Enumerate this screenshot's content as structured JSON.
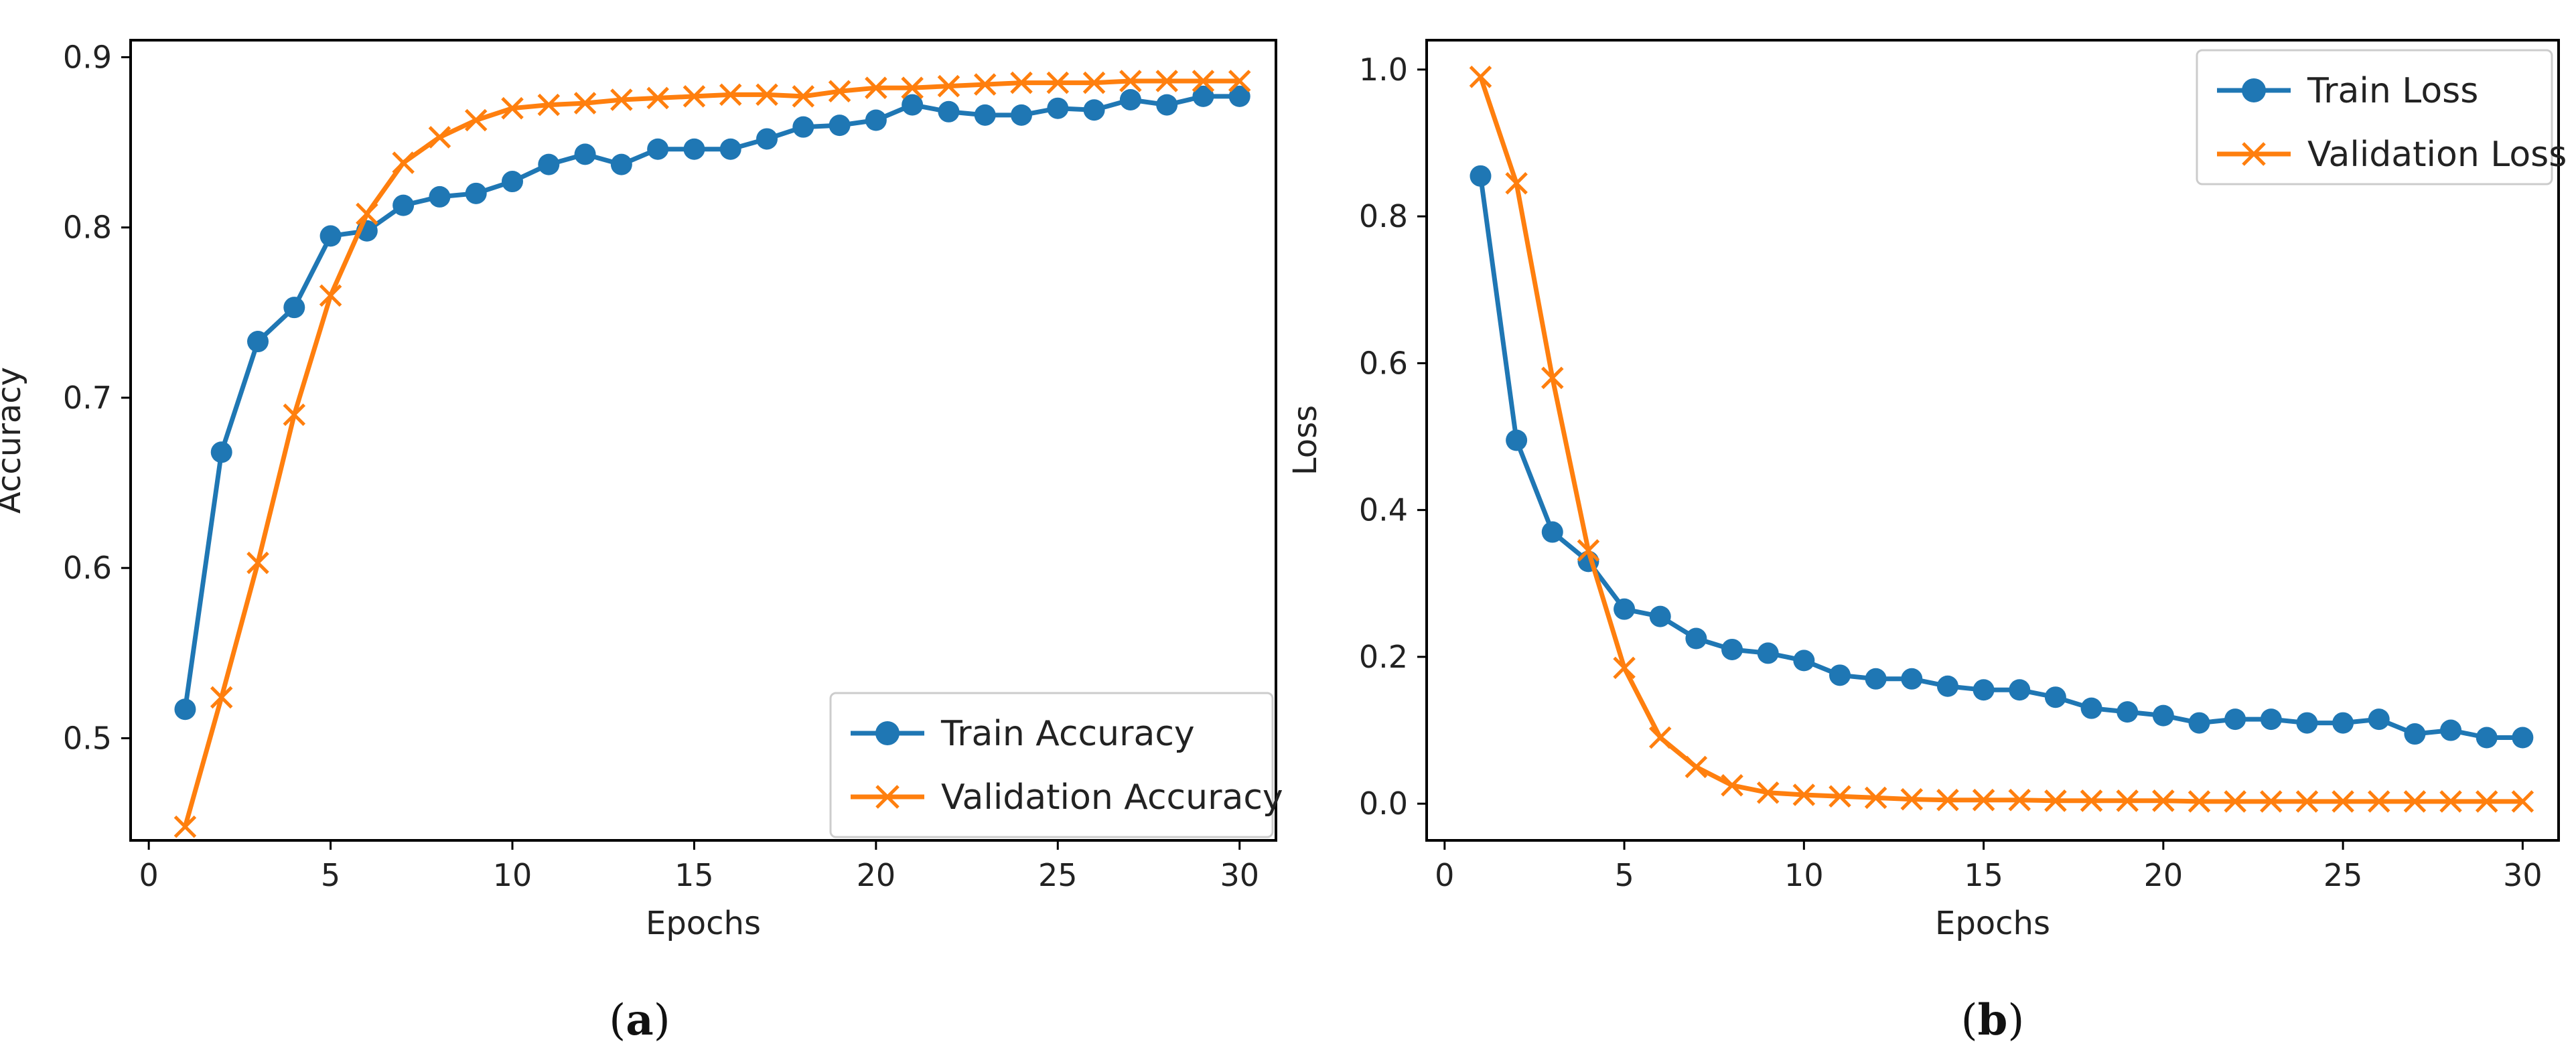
{
  "chart_data": [
    {
      "id": "a",
      "type": "line",
      "caption_open": "(",
      "caption_letter": "a",
      "caption_close": ")",
      "title": "",
      "xlabel": "Epochs",
      "ylabel": "Accuracy",
      "xlim": [
        -0.5,
        31
      ],
      "ylim": [
        0.44,
        0.91
      ],
      "xticks": [
        0,
        5,
        10,
        15,
        20,
        25,
        30
      ],
      "yticks": [
        0.5,
        0.6,
        0.7,
        0.8,
        0.9
      ],
      "ytick_labels": [
        "0.5",
        "0.6",
        "0.7",
        "0.8",
        "0.9"
      ],
      "legend_position": "lower-right",
      "x": [
        1,
        2,
        3,
        4,
        5,
        6,
        7,
        8,
        9,
        10,
        11,
        12,
        13,
        14,
        15,
        16,
        17,
        18,
        19,
        20,
        21,
        22,
        23,
        24,
        25,
        26,
        27,
        28,
        29,
        30
      ],
      "series": [
        {
          "name": "Train Accuracy",
          "color": "#1f77b4",
          "marker": "circle",
          "values": [
            0.517,
            0.668,
            0.733,
            0.753,
            0.795,
            0.798,
            0.813,
            0.818,
            0.82,
            0.827,
            0.837,
            0.843,
            0.837,
            0.846,
            0.846,
            0.846,
            0.852,
            0.859,
            0.86,
            0.863,
            0.872,
            0.868,
            0.866,
            0.866,
            0.87,
            0.869,
            0.875,
            0.872,
            0.877,
            0.877
          ]
        },
        {
          "name": "Validation Accuracy",
          "color": "#ff7f0e",
          "marker": "x",
          "values": [
            0.448,
            0.524,
            0.603,
            0.69,
            0.76,
            0.808,
            0.838,
            0.853,
            0.863,
            0.87,
            0.872,
            0.873,
            0.875,
            0.876,
            0.877,
            0.878,
            0.878,
            0.877,
            0.88,
            0.882,
            0.882,
            0.883,
            0.884,
            0.885,
            0.885,
            0.885,
            0.886,
            0.886,
            0.886,
            0.886
          ]
        }
      ]
    },
    {
      "id": "b",
      "type": "line",
      "caption_open": "(",
      "caption_letter": "b",
      "caption_close": ")",
      "title": "",
      "xlabel": "Epochs",
      "ylabel": "Loss",
      "xlim": [
        -0.5,
        31
      ],
      "ylim": [
        -0.05,
        1.04
      ],
      "xticks": [
        0,
        5,
        10,
        15,
        20,
        25,
        30
      ],
      "yticks": [
        0.0,
        0.2,
        0.4,
        0.6,
        0.8,
        1.0
      ],
      "ytick_labels": [
        "0.0",
        "0.2",
        "0.4",
        "0.6",
        "0.8",
        "1.0"
      ],
      "legend_position": "upper-right",
      "x": [
        1,
        2,
        3,
        4,
        5,
        6,
        7,
        8,
        9,
        10,
        11,
        12,
        13,
        14,
        15,
        16,
        17,
        18,
        19,
        20,
        21,
        22,
        23,
        24,
        25,
        26,
        27,
        28,
        29,
        30
      ],
      "series": [
        {
          "name": "Train Loss",
          "color": "#1f77b4",
          "marker": "circle",
          "values": [
            0.855,
            0.495,
            0.37,
            0.33,
            0.265,
            0.255,
            0.225,
            0.21,
            0.205,
            0.195,
            0.175,
            0.17,
            0.17,
            0.16,
            0.155,
            0.155,
            0.145,
            0.13,
            0.125,
            0.12,
            0.11,
            0.115,
            0.115,
            0.11,
            0.11,
            0.115,
            0.095,
            0.1,
            0.09,
            0.09
          ]
        },
        {
          "name": "Validation Loss",
          "color": "#ff7f0e",
          "marker": "x",
          "values": [
            0.99,
            0.845,
            0.58,
            0.345,
            0.185,
            0.09,
            0.05,
            0.025,
            0.015,
            0.012,
            0.01,
            0.008,
            0.006,
            0.005,
            0.005,
            0.005,
            0.004,
            0.004,
            0.004,
            0.004,
            0.003,
            0.003,
            0.003,
            0.003,
            0.003,
            0.003,
            0.003,
            0.003,
            0.003,
            0.003
          ]
        }
      ]
    }
  ]
}
